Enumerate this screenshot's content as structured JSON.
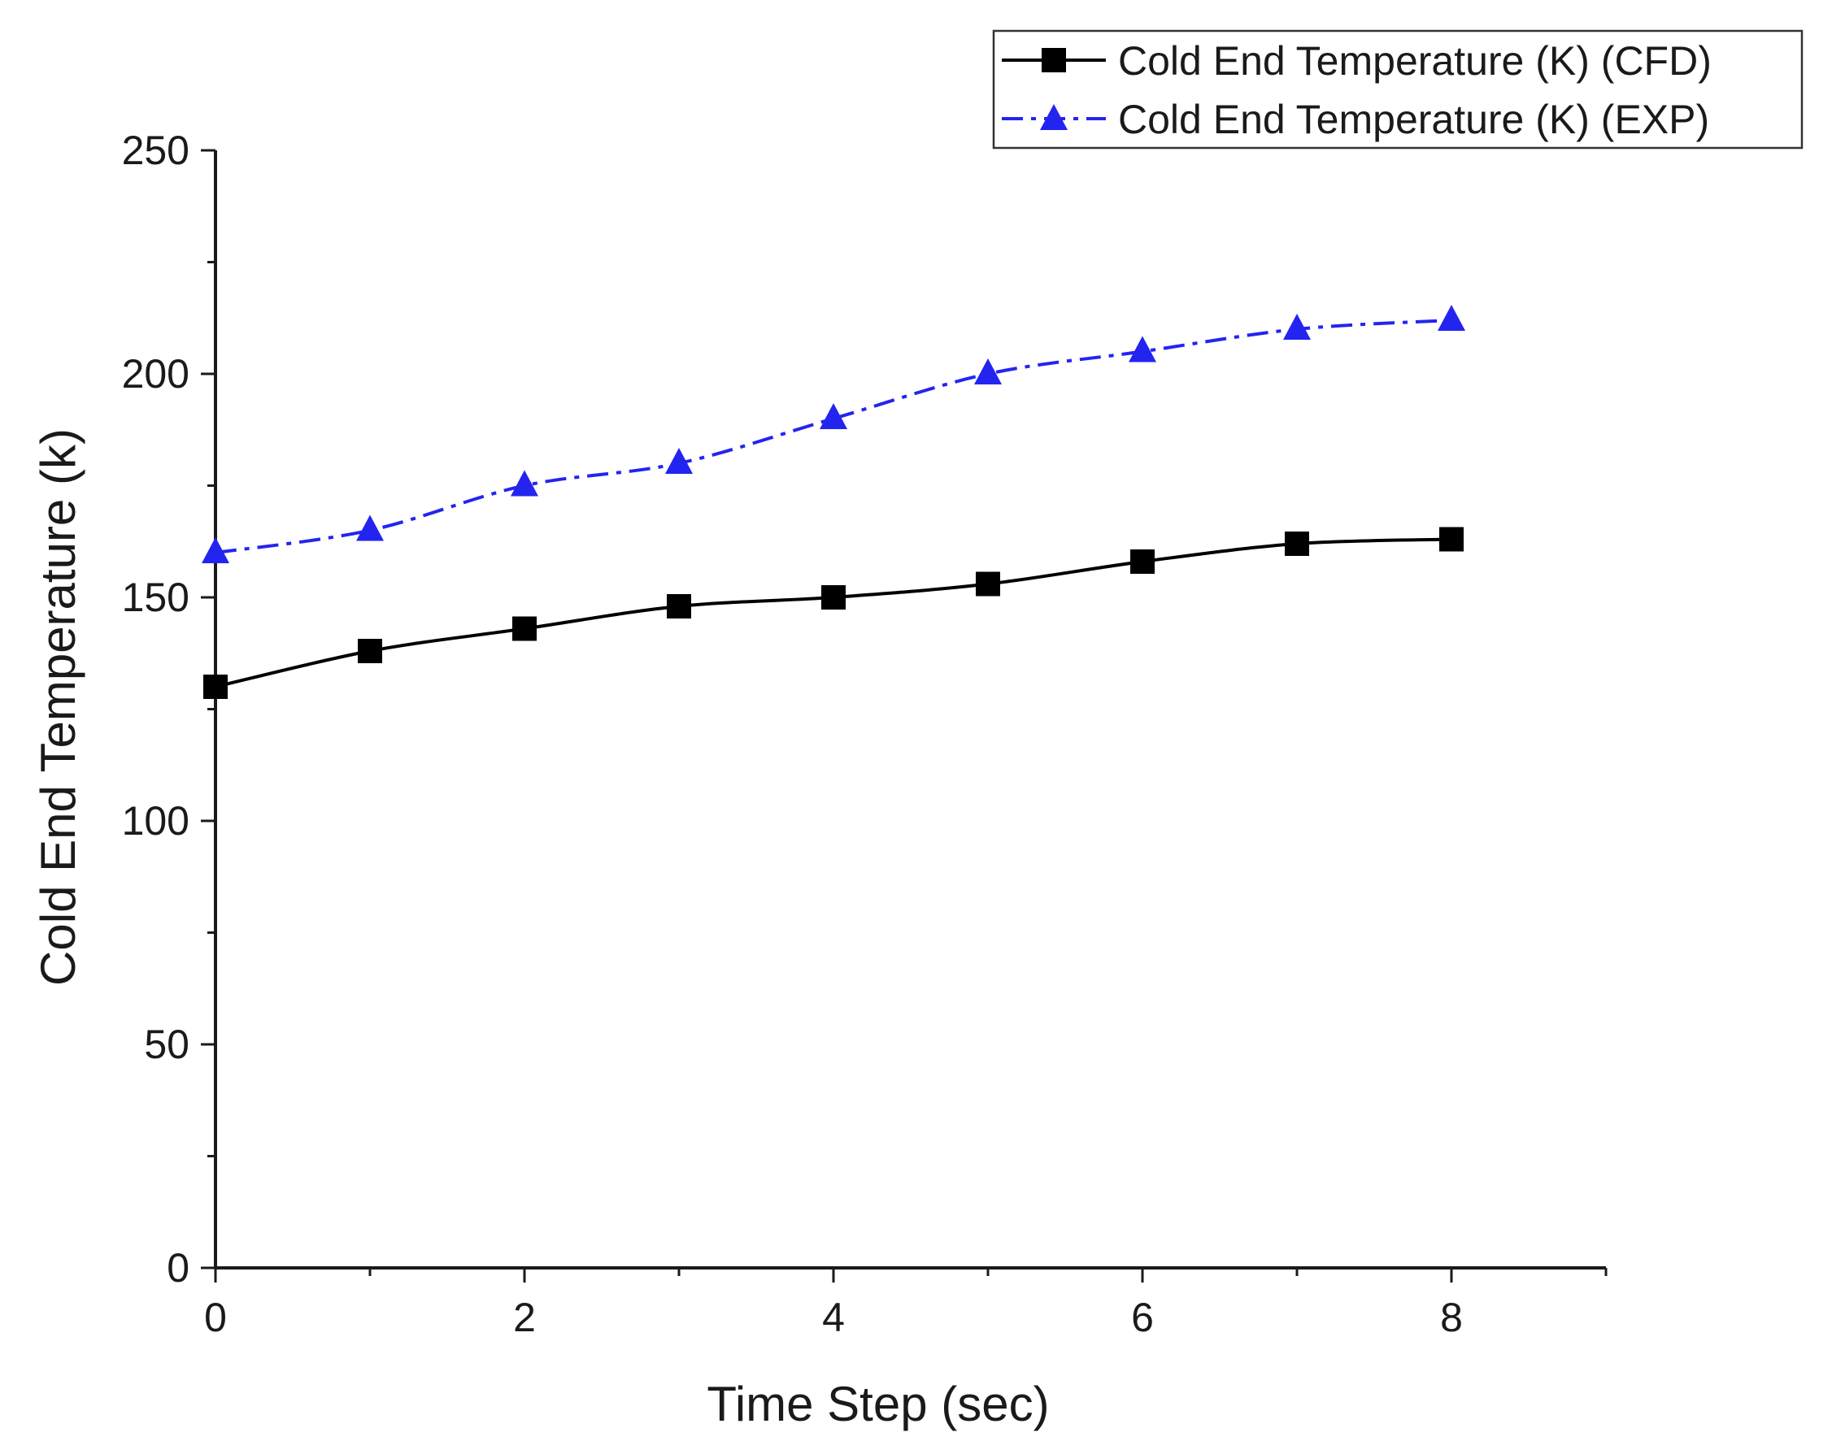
{
  "chart_data": {
    "type": "line",
    "title": "",
    "xlabel": "Time Step (sec)",
    "ylabel": "Cold End Temperature (k)",
    "xlim": [
      0,
      9
    ],
    "ylim": [
      0,
      250
    ],
    "xticks": [
      0,
      2,
      4,
      6,
      8
    ],
    "yticks": [
      0,
      50,
      100,
      150,
      200,
      250
    ],
    "grid": false,
    "legend_position": "top-right",
    "x": [
      0,
      1,
      2,
      3,
      4,
      5,
      6,
      7,
      8
    ],
    "series": [
      {
        "name": "Cold End Temperature (K) (CFD)",
        "values": [
          130,
          138,
          143,
          148,
          150,
          153,
          158,
          162,
          163
        ],
        "color": "#000000",
        "marker": "square",
        "line_style": "solid"
      },
      {
        "name": "Cold End Temperature (K) (EXP)",
        "values": [
          160,
          165,
          175,
          180,
          190,
          200,
          205,
          210,
          212
        ],
        "color": "#2424f0",
        "marker": "triangle",
        "line_style": "dash-dot"
      }
    ]
  }
}
